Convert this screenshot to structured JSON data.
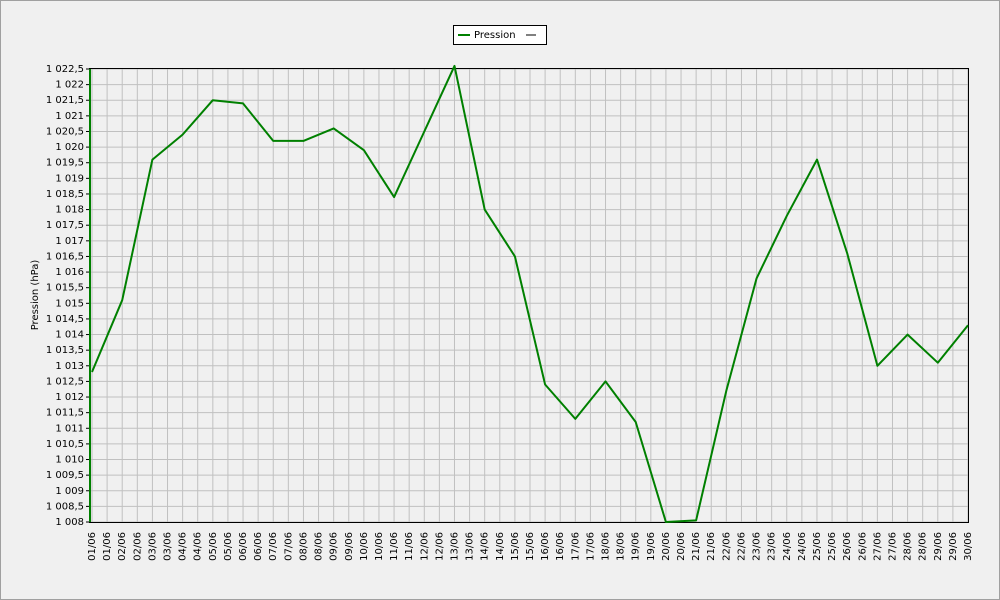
{
  "chart_data": {
    "type": "line",
    "y_label": "Pression (hPa)",
    "series": [
      {
        "name": "Pression",
        "color": "#008000",
        "values": [
          1012.8,
          1015.1,
          1019.6,
          1020.4,
          1021.5,
          1021.4,
          1020.2,
          1020.2,
          1020.6,
          1019.9,
          1018.4,
          1020.5,
          1022.6,
          1018.0,
          1016.5,
          1012.4,
          1011.3,
          1012.5,
          1011.2,
          1008.0,
          1008.05,
          1012.2,
          1015.8,
          1017.8,
          1019.6,
          1016.6,
          1013.0,
          1014.0,
          1013.1,
          1014.3
        ]
      }
    ],
    "xticks": [
      "01/06",
      "01/06",
      "02/06",
      "02/06",
      "03/06",
      "03/06",
      "04/06",
      "04/06",
      "05/06",
      "05/06",
      "06/06",
      "06/06",
      "07/06",
      "07/06",
      "08/06",
      "08/06",
      "09/06",
      "09/06",
      "10/06",
      "10/06",
      "11/06",
      "11/06",
      "12/06",
      "12/06",
      "13/06",
      "13/06",
      "14/06",
      "14/06",
      "15/06",
      "15/06",
      "16/06",
      "16/06",
      "17/06",
      "17/06",
      "18/06",
      "18/06",
      "19/06",
      "19/06",
      "20/06",
      "20/06",
      "21/06",
      "21/06",
      "22/06",
      "22/06",
      "23/06",
      "23/06",
      "24/06",
      "24/06",
      "25/06",
      "25/06",
      "26/06",
      "26/06",
      "27/06",
      "27/06",
      "28/06",
      "28/06",
      "29/06",
      "29/06",
      "30/06"
    ],
    "ylim": [
      1008,
      1022.5
    ],
    "yticks": [
      {
        "value": 1008,
        "label": "1 008"
      },
      {
        "value": 1008.5,
        "label": "1 008,5"
      },
      {
        "value": 1009,
        "label": "1 009"
      },
      {
        "value": 1009.5,
        "label": "1 009,5"
      },
      {
        "value": 1010,
        "label": "1 010"
      },
      {
        "value": 1010.5,
        "label": "1 010,5"
      },
      {
        "value": 1011,
        "label": "1 011"
      },
      {
        "value": 1011.5,
        "label": "1 011,5"
      },
      {
        "value": 1012,
        "label": "1 012"
      },
      {
        "value": 1012.5,
        "label": "1 012,5"
      },
      {
        "value": 1013,
        "label": "1 013"
      },
      {
        "value": 1013.5,
        "label": "1 013,5"
      },
      {
        "value": 1014,
        "label": "1 014"
      },
      {
        "value": 1014.5,
        "label": "1 014,5"
      },
      {
        "value": 1015,
        "label": "1 015"
      },
      {
        "value": 1015.5,
        "label": "1 015,5"
      },
      {
        "value": 1016,
        "label": "1 016"
      },
      {
        "value": 1016.5,
        "label": "1 016,5"
      },
      {
        "value": 1017,
        "label": "1 017"
      },
      {
        "value": 1017.5,
        "label": "1 017,5"
      },
      {
        "value": 1018,
        "label": "1 018"
      },
      {
        "value": 1018.5,
        "label": "1 018,5"
      },
      {
        "value": 1019,
        "label": "1 019"
      },
      {
        "value": 1019.5,
        "label": "1 019,5"
      },
      {
        "value": 1020,
        "label": "1 020"
      },
      {
        "value": 1020.5,
        "label": "1 020,5"
      },
      {
        "value": 1021,
        "label": "1 021"
      },
      {
        "value": 1021.5,
        "label": "1 021,5"
      },
      {
        "value": 1022,
        "label": "1 022"
      },
      {
        "value": 1022.5,
        "label": "1 022,5"
      }
    ],
    "grid": true
  }
}
